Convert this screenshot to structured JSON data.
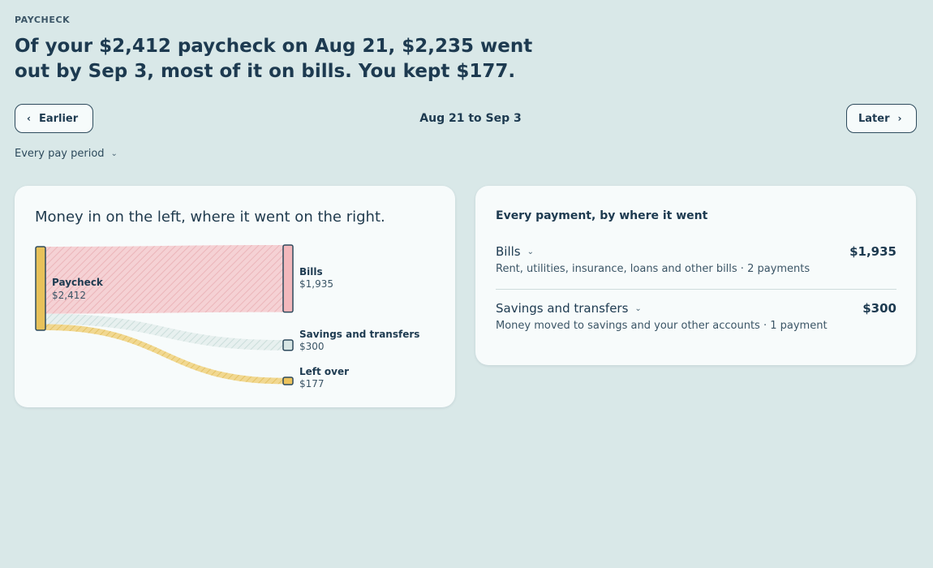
{
  "eyebrow": "PAYCHECK",
  "headline": "Of your $2,412 paycheck on Aug 21, $2,235 went out by Sep 3, most of it on bills. You kept $177.",
  "nav": {
    "earlier_label": "Earlier",
    "later_label": "Later",
    "date_range": "Aug 21 to Sep 3",
    "period_label": "Every pay period"
  },
  "flow_card": {
    "title": "Money in on the left, where it went on the right."
  },
  "chart_data": {
    "type": "sankey",
    "source": {
      "name": "Paycheck",
      "value_label": "$2,412",
      "value": 2412
    },
    "targets": [
      {
        "name": "Bills",
        "value_label": "$1,935",
        "value": 1935,
        "color": "#f2b8bc"
      },
      {
        "name": "Savings and transfers",
        "value_label": "$300",
        "value": 300,
        "color": "#d7e6e4"
      },
      {
        "name": "Left over",
        "value_label": "$177",
        "value": 177,
        "color": "#ecc35c"
      }
    ],
    "source_color": "#e8c25a"
  },
  "payments": {
    "title": "Every payment, by where it went",
    "rows": [
      {
        "name": "Bills",
        "amount": "$1,935",
        "desc": "Rent, utilities, insurance, loans and other bills · 2 payments"
      },
      {
        "name": "Savings and transfers",
        "amount": "$300",
        "desc": "Money moved to savings and your other accounts · 1 payment"
      }
    ]
  },
  "icons": {
    "prev": "chevron-left-icon",
    "next": "chevron-right-icon",
    "expand": "chevron-down-icon"
  }
}
